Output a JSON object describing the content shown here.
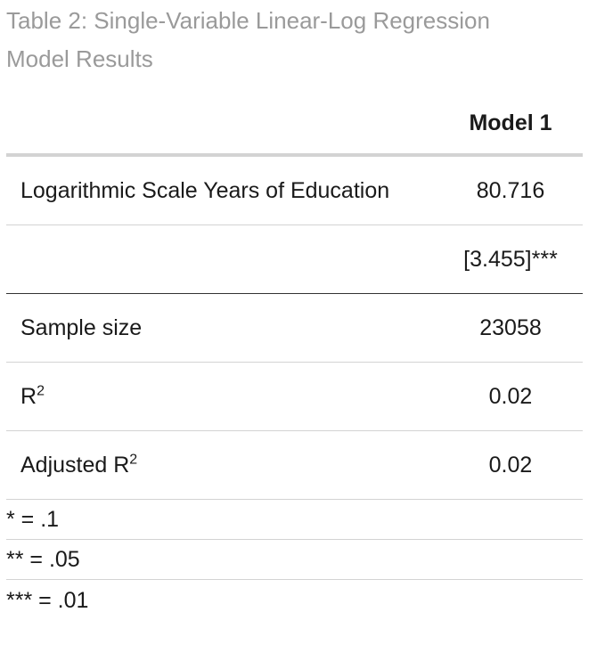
{
  "caption": {
    "line1": "Table 2: Single-Variable Linear-Log Regression",
    "line2": "Model Results"
  },
  "table": {
    "column_header": "Model 1",
    "coefficient": {
      "label": "Logarithmic Scale Years of Education",
      "estimate": "80.716",
      "std_error": "[3.455]***"
    },
    "stats": [
      {
        "label": "Sample size",
        "value": "23058"
      },
      {
        "label": "R",
        "sup": "2",
        "value": "0.02"
      },
      {
        "label": "Adjusted R",
        "sup": "2",
        "value": "0.02"
      }
    ],
    "notes": [
      "* = .1",
      "** = .05",
      "*** = .01"
    ]
  }
}
